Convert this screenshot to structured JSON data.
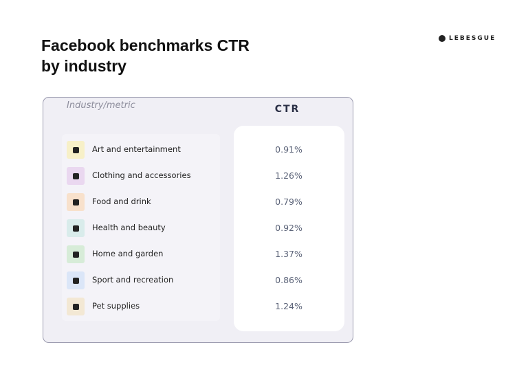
{
  "header": {
    "title": [
      "Facebook benchmarks CTR",
      "by industry"
    ],
    "brand": "LEBESGUE"
  },
  "table": {
    "columns": [
      "Industry/metric",
      "CTR"
    ],
    "rows": [
      [
        "Art and entertainment",
        "0.91%"
      ],
      [
        "Clothing and accessories",
        "1.26%"
      ],
      [
        "Food and drink",
        "0.79%"
      ],
      [
        "Health and beauty",
        "0.92%"
      ],
      [
        "Home and garden",
        "1.37%"
      ],
      [
        "Sport and recreation",
        "0.86%"
      ],
      [
        "Pet supplies",
        "1.24%"
      ]
    ]
  }
}
